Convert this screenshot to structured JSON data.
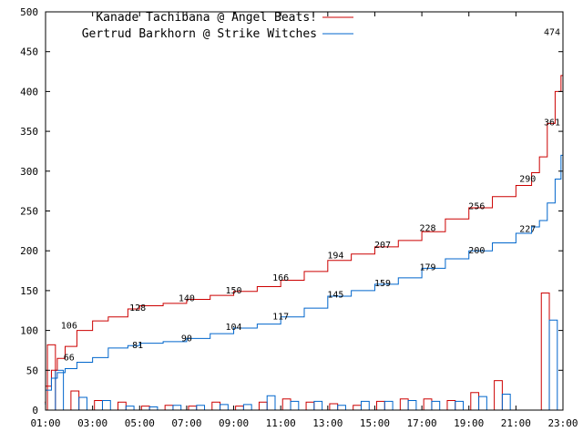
{
  "chart_data": {
    "type": "line",
    "x_ticks": [
      "01:00",
      "03:00",
      "05:00",
      "07:00",
      "09:00",
      "11:00",
      "13:00",
      "15:00",
      "17:00",
      "19:00",
      "21:00",
      "23:00"
    ],
    "ylim": [
      0,
      500
    ],
    "y_ticks": [
      0,
      50,
      100,
      150,
      200,
      250,
      300,
      350,
      400,
      450,
      500
    ],
    "grid": false,
    "legend": "top-left",
    "series": [
      {
        "name": "Kanade Tachibana @ Angel Beats!",
        "color": "#cc0000",
        "cumulative": [
          [
            "00:58",
            10
          ],
          [
            "01:00",
            30
          ],
          [
            "01:15",
            50
          ],
          [
            "01:30",
            65
          ],
          [
            "01:50",
            80
          ],
          [
            "02:20",
            100
          ],
          [
            "03:00",
            112
          ],
          [
            "03:40",
            117
          ],
          [
            "04:30",
            127
          ],
          [
            "05:00",
            131
          ],
          [
            "06:00",
            134
          ],
          [
            "07:00",
            139
          ],
          [
            "08:00",
            144
          ],
          [
            "09:00",
            149
          ],
          [
            "10:00",
            155
          ],
          [
            "11:00",
            163
          ],
          [
            "12:00",
            174
          ],
          [
            "13:00",
            188
          ],
          [
            "14:00",
            196
          ],
          [
            "15:00",
            205
          ],
          [
            "16:00",
            213
          ],
          [
            "17:00",
            224
          ],
          [
            "18:00",
            240
          ],
          [
            "19:00",
            254
          ],
          [
            "20:00",
            268
          ],
          [
            "21:00",
            282
          ],
          [
            "21:40",
            298
          ],
          [
            "22:00",
            318
          ],
          [
            "22:20",
            360
          ],
          [
            "22:40",
            400
          ],
          [
            "22:55",
            420
          ],
          [
            "23:00",
            474
          ]
        ],
        "hourly_counts": [
          82,
          24,
          12,
          10,
          5,
          6,
          5,
          10,
          5,
          10,
          14,
          10,
          8,
          6,
          11,
          14,
          14,
          12,
          22,
          37,
          147
        ]
      },
      {
        "name": "Gertrud Barkhorn @ Strike Witches",
        "color": "#0066cc",
        "cumulative": [
          [
            "00:58",
            8
          ],
          [
            "01:00",
            25
          ],
          [
            "01:15",
            40
          ],
          [
            "01:30",
            47
          ],
          [
            "01:50",
            52
          ],
          [
            "02:20",
            60
          ],
          [
            "03:00",
            66
          ],
          [
            "03:40",
            78
          ],
          [
            "04:30",
            81
          ],
          [
            "05:00",
            84
          ],
          [
            "06:00",
            86
          ],
          [
            "07:00",
            90
          ],
          [
            "08:00",
            96
          ],
          [
            "09:00",
            103
          ],
          [
            "10:00",
            108
          ],
          [
            "11:00",
            117
          ],
          [
            "12:00",
            128
          ],
          [
            "13:00",
            143
          ],
          [
            "14:00",
            150
          ],
          [
            "15:00",
            158
          ],
          [
            "16:00",
            166
          ],
          [
            "17:00",
            178
          ],
          [
            "18:00",
            190
          ],
          [
            "19:00",
            200
          ],
          [
            "20:00",
            210
          ],
          [
            "21:00",
            222
          ],
          [
            "21:40",
            230
          ],
          [
            "22:00",
            238
          ],
          [
            "22:20",
            260
          ],
          [
            "22:40",
            290
          ],
          [
            "22:55",
            320
          ],
          [
            "23:00",
            361
          ]
        ],
        "hourly_counts": [
          50,
          16,
          12,
          5,
          4,
          6,
          6,
          7,
          7,
          18,
          11,
          11,
          6,
          11,
          11,
          12,
          11,
          11,
          17,
          20,
          113
        ]
      }
    ],
    "annotations": [
      {
        "series": 0,
        "x": "02:00",
        "text": "106",
        "value": 106
      },
      {
        "series": 0,
        "x": "04:55",
        "text": "128",
        "value": 128
      },
      {
        "series": 0,
        "x": "07:00",
        "text": "140",
        "value": 140
      },
      {
        "series": 0,
        "x": "09:00",
        "text": "150",
        "value": 150
      },
      {
        "series": 0,
        "x": "11:00",
        "text": "166",
        "value": 166
      },
      {
        "series": 0,
        "x": "13:20",
        "text": "194",
        "value": 194
      },
      {
        "series": 0,
        "x": "15:20",
        "text": "207",
        "value": 207
      },
      {
        "series": 0,
        "x": "17:15",
        "text": "228",
        "value": 228
      },
      {
        "series": 0,
        "x": "19:20",
        "text": "256",
        "value": 256
      },
      {
        "series": 0,
        "x": "21:30",
        "text": "290",
        "value": 290
      },
      {
        "series": 0,
        "x": "23:00",
        "text": "474",
        "value": 474
      },
      {
        "series": 1,
        "x": "02:00",
        "text": "66",
        "value": 66
      },
      {
        "series": 1,
        "x": "04:55",
        "text": "81",
        "value": 81
      },
      {
        "series": 1,
        "x": "07:00",
        "text": "90",
        "value": 90
      },
      {
        "series": 1,
        "x": "09:00",
        "text": "104",
        "value": 104
      },
      {
        "series": 1,
        "x": "11:00",
        "text": "117",
        "value": 117
      },
      {
        "series": 1,
        "x": "13:20",
        "text": "145",
        "value": 145
      },
      {
        "series": 1,
        "x": "15:20",
        "text": "159",
        "value": 159
      },
      {
        "series": 1,
        "x": "17:15",
        "text": "179",
        "value": 179
      },
      {
        "series": 1,
        "x": "19:20",
        "text": "200",
        "value": 200
      },
      {
        "series": 1,
        "x": "21:30",
        "text": "227",
        "value": 227
      },
      {
        "series": 1,
        "x": "23:00",
        "text": "361",
        "value": 361
      }
    ]
  }
}
